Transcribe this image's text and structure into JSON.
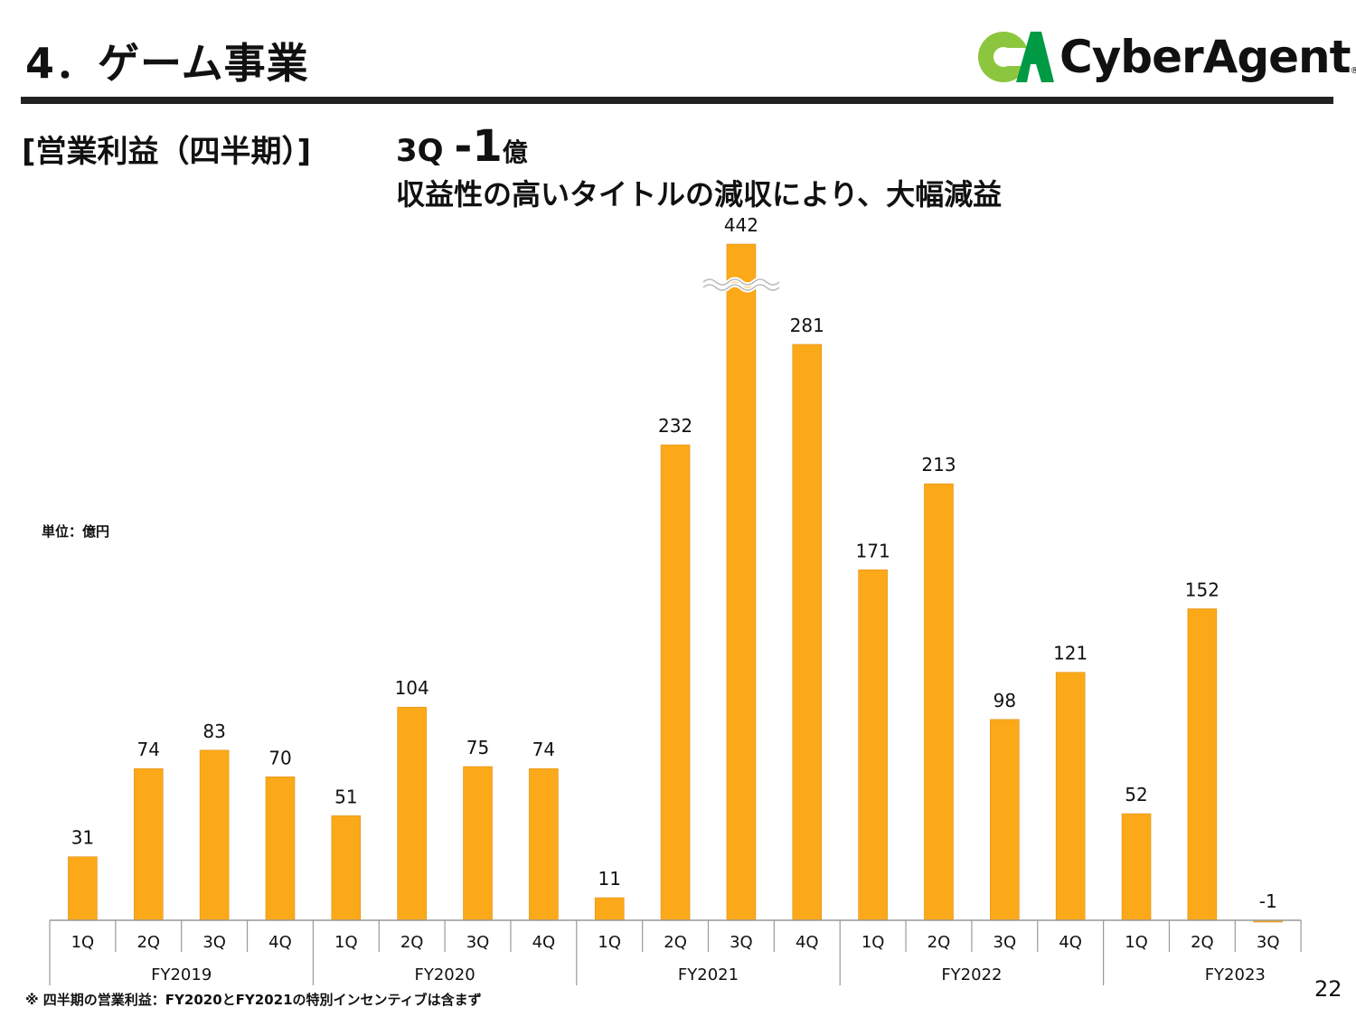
{
  "header": {
    "title": "4．ゲーム事業",
    "logo_text": "CyberAgent",
    "logo_mark": "CA",
    "logo_colors": [
      "#8CC63F",
      "#009944"
    ]
  },
  "section_title": "[営業利益（四半期）]",
  "headline": {
    "quarter": "3Q",
    "value": "-1",
    "unit": "億",
    "subtitle": "収益性の高いタイトルの減収により、大幅減益"
  },
  "unit_label": "単位：億円",
  "footnote": "※ 四半期の営業利益：FY2020とFY2021の特別インセンティブは含まず",
  "page_number": "22",
  "chart_data": {
    "type": "bar",
    "bar_color": "#FBA919",
    "ylabel": "単位：億円",
    "axis_break": {
      "bar_index": 10,
      "note": "broken bar (wavy break mark)"
    },
    "groups": [
      {
        "label": "FY2019",
        "quarters": [
          "1Q",
          "2Q",
          "3Q",
          "4Q"
        ]
      },
      {
        "label": "FY2020",
        "quarters": [
          "1Q",
          "2Q",
          "3Q",
          "4Q"
        ]
      },
      {
        "label": "FY2021",
        "quarters": [
          "1Q",
          "2Q",
          "3Q",
          "4Q"
        ]
      },
      {
        "label": "FY2022",
        "quarters": [
          "1Q",
          "2Q",
          "3Q",
          "4Q"
        ]
      },
      {
        "label": "FY2023",
        "quarters": [
          "1Q",
          "2Q",
          "3Q"
        ]
      }
    ],
    "values": [
      31,
      74,
      83,
      70,
      51,
      104,
      75,
      74,
      11,
      232,
      442,
      281,
      171,
      213,
      98,
      121,
      52,
      152,
      -1
    ],
    "data_labels": [
      "31",
      "74",
      "83",
      "70",
      "51",
      "104",
      "75",
      "74",
      "11",
      "232",
      "442",
      "281",
      "171",
      "213",
      "98",
      "121",
      "52",
      "152",
      "-1"
    ]
  }
}
